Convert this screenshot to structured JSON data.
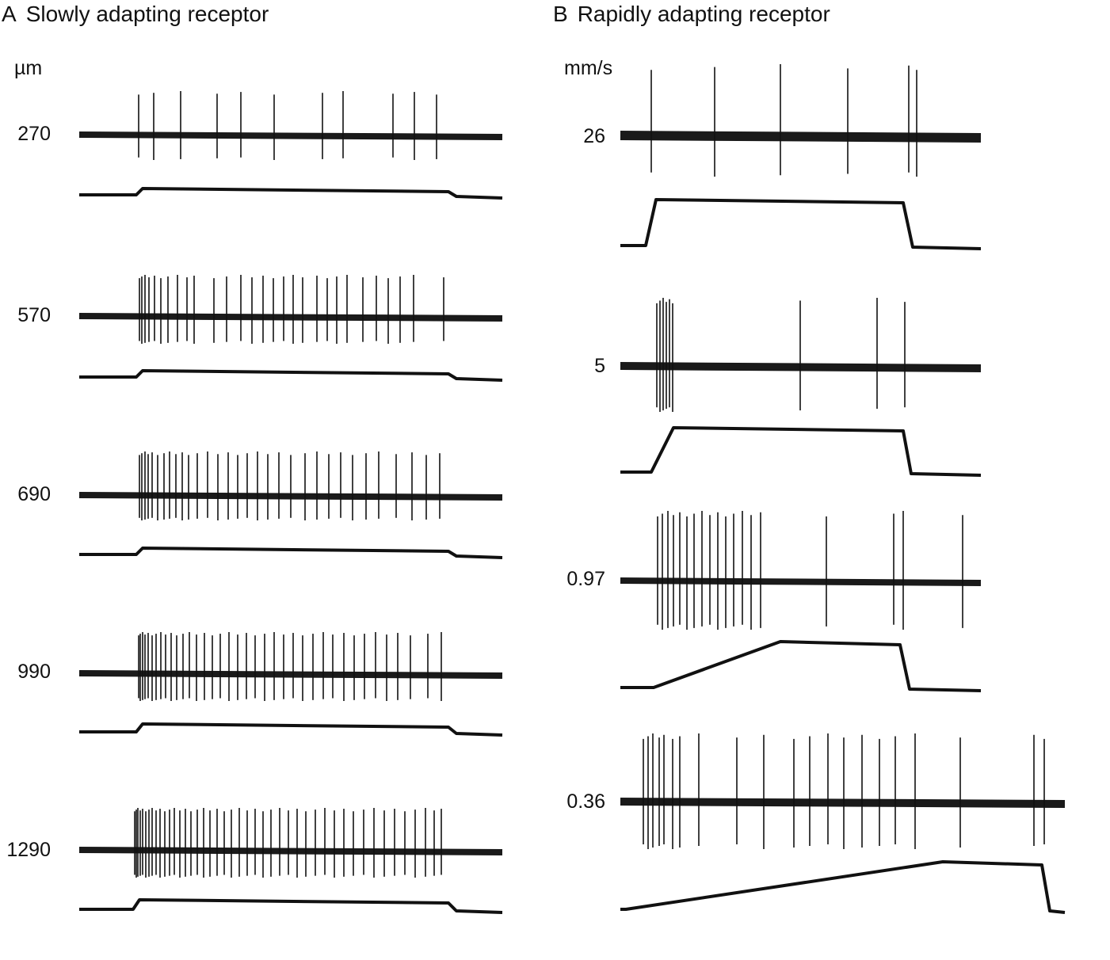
{
  "panel_a": {
    "letter": "A",
    "title": "Slowly adapting receptor",
    "unit": "µm",
    "rows": [
      {
        "label": "270",
        "spikes": [
          175,
          194,
          228,
          274,
          304,
          346,
          407,
          433,
          496,
          523,
          551
        ]
      },
      {
        "label": "570",
        "spikes": [
          176,
          179,
          183,
          188,
          195,
          203,
          212,
          224,
          236,
          245,
          270,
          286,
          304,
          318,
          332,
          345,
          358,
          370,
          382,
          400,
          413,
          425,
          438,
          458,
          475,
          490,
          505,
          522,
          560
        ]
      },
      {
        "label": "690",
        "spikes": [
          176,
          179,
          183,
          187,
          192,
          199,
          207,
          214,
          222,
          230,
          238,
          249,
          262,
          275,
          288,
          300,
          312,
          325,
          338,
          352,
          367,
          385,
          400,
          415,
          430,
          445,
          462,
          478,
          500,
          520,
          538,
          555
        ]
      },
      {
        "label": "990",
        "spikes": [
          175,
          177,
          180,
          183,
          187,
          192,
          197,
          203,
          209,
          216,
          223,
          231,
          239,
          248,
          258,
          268,
          278,
          289,
          300,
          311,
          322,
          334,
          346,
          358,
          370,
          382,
          395,
          408,
          420,
          434,
          447,
          460,
          474,
          488,
          502,
          518,
          540,
          557
        ]
      },
      {
        "label": "1290",
        "spikes": [
          170,
          172,
          174,
          177,
          180,
          184,
          188,
          192,
          197,
          202,
          208,
          214,
          220,
          227,
          234,
          241,
          249,
          257,
          265,
          274,
          283,
          292,
          302,
          312,
          322,
          332,
          342,
          353,
          364,
          375,
          386,
          398,
          410,
          422,
          434,
          446,
          459,
          472,
          485,
          498,
          511,
          524,
          537,
          548,
          557
        ]
      }
    ]
  },
  "panel_b": {
    "letter": "B",
    "title": "Rapidly adapting receptor",
    "unit": "mm/s",
    "rows": [
      {
        "label": "26",
        "spikes": [
          822,
          902,
          985,
          1070,
          1147,
          1157
        ]
      },
      {
        "label": "5",
        "spikes": [
          829,
          833,
          837,
          841,
          845,
          849,
          1010,
          1107,
          1142
        ]
      },
      {
        "label": "0.97",
        "spikes": [
          830,
          836,
          843,
          850,
          858,
          867,
          876,
          886,
          896,
          906,
          916,
          926,
          937,
          948,
          960,
          1043,
          1128,
          1140,
          1215
        ]
      },
      {
        "label": "0.36",
        "spikes": [
          812,
          818,
          824,
          832,
          838,
          849,
          858,
          882,
          930,
          964,
          1002,
          1022,
          1045,
          1065,
          1088,
          1110,
          1130,
          1155,
          1212,
          1305,
          1318
        ]
      }
    ]
  }
}
